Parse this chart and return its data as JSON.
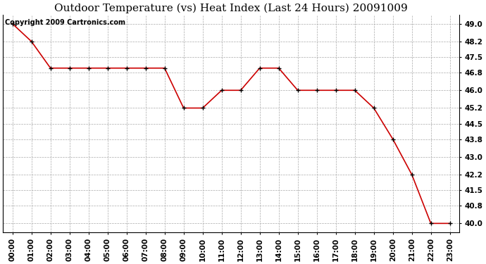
{
  "title": "Outdoor Temperature (vs) Heat Index (Last 24 Hours) 20091009",
  "copyright_text": "Copyright 2009 Cartronics.com",
  "x_labels": [
    "00:00",
    "01:00",
    "02:00",
    "03:00",
    "04:00",
    "05:00",
    "06:00",
    "07:00",
    "08:00",
    "09:00",
    "10:00",
    "11:00",
    "12:00",
    "13:00",
    "14:00",
    "15:00",
    "16:00",
    "17:00",
    "18:00",
    "19:00",
    "20:00",
    "21:00",
    "22:00",
    "23:00"
  ],
  "y_values": [
    49.0,
    48.2,
    47.0,
    47.0,
    47.0,
    47.0,
    47.0,
    47.0,
    47.0,
    45.2,
    45.2,
    46.0,
    46.0,
    47.0,
    47.0,
    46.0,
    46.0,
    46.0,
    46.0,
    45.2,
    43.8,
    42.2,
    40.0,
    40.0
  ],
  "line_color": "#cc0000",
  "marker": "+",
  "marker_color": "#000000",
  "bg_color": "#ffffff",
  "grid_color": "#aaaaaa",
  "ylim_min": 39.6,
  "ylim_max": 49.4,
  "yticks": [
    40.0,
    40.8,
    41.5,
    42.2,
    43.0,
    43.8,
    44.5,
    45.2,
    46.0,
    46.8,
    47.5,
    48.2,
    49.0
  ],
  "title_fontsize": 11,
  "tick_fontsize": 7.5,
  "copyright_fontsize": 7
}
